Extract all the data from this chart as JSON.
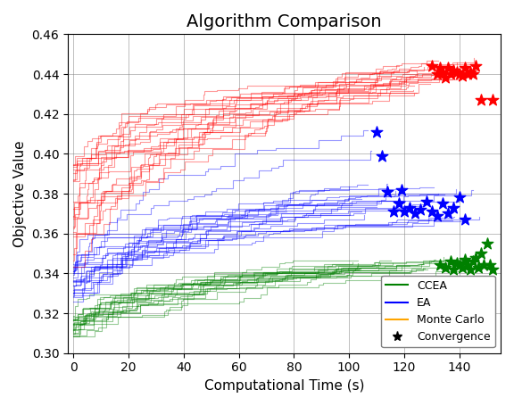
{
  "title": "Algorithm Comparison",
  "xlabel": "Computational Time (s)",
  "ylabel": "Objective Value",
  "xlim": [
    -2,
    155
  ],
  "ylim": [
    0.3,
    0.46
  ],
  "grid": true,
  "background_color": "#ffffff",
  "ccea_color": "#008000",
  "ea_color": "#0000ff",
  "mc_color": "#ffa500",
  "red_color": "#ff0000",
  "ccea_alpha": 0.4,
  "ea_alpha": 0.4,
  "red_alpha": 0.4,
  "seed": 7,
  "n_ccea_runs": 22,
  "n_ea_runs": 22,
  "n_red_runs": 22,
  "ccea_conv_x": [
    133,
    135,
    137,
    138,
    139,
    140,
    141,
    142,
    143,
    144,
    145,
    146,
    147,
    148,
    149,
    150,
    151,
    152
  ],
  "ccea_conv_y": [
    0.344,
    0.343,
    0.346,
    0.342,
    0.345,
    0.344,
    0.343,
    0.347,
    0.344,
    0.342,
    0.346,
    0.348,
    0.343,
    0.35,
    0.344,
    0.355,
    0.344,
    0.342
  ],
  "ea_conv_x": [
    110,
    112,
    114,
    116,
    118,
    119,
    120,
    122,
    124,
    126,
    128,
    130,
    132,
    134,
    136,
    138,
    140,
    142
  ],
  "ea_conv_y": [
    0.411,
    0.399,
    0.381,
    0.371,
    0.375,
    0.382,
    0.371,
    0.373,
    0.37,
    0.372,
    0.376,
    0.371,
    0.369,
    0.375,
    0.37,
    0.373,
    0.378,
    0.367
  ],
  "red_conv_x": [
    130,
    132,
    133,
    134,
    135,
    136,
    137,
    138,
    139,
    140,
    141,
    142,
    143,
    144,
    145,
    146,
    148,
    152
  ],
  "red_conv_y": [
    0.444,
    0.44,
    0.443,
    0.441,
    0.438,
    0.443,
    0.44,
    0.442,
    0.441,
    0.44,
    0.439,
    0.443,
    0.44,
    0.441,
    0.44,
    0.444,
    0.427,
    0.427
  ],
  "legend_labels": [
    "CCEA",
    "EA",
    "Monte Carlo",
    "Convergence"
  ]
}
